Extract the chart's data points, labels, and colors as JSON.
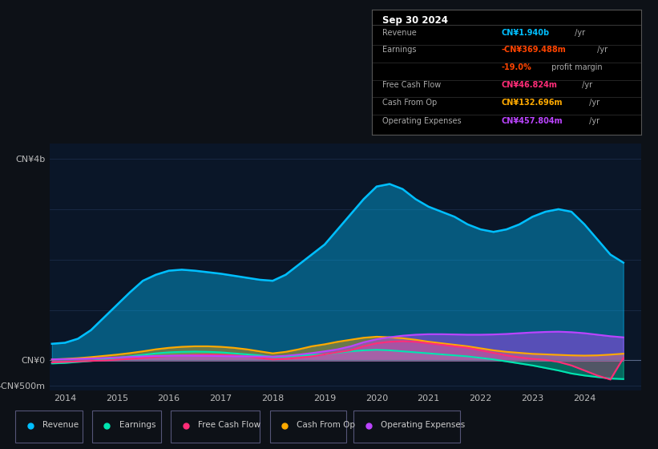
{
  "bg_color": "#0d1117",
  "plot_bg": "#0a1628",
  "title": "Sep 30 2024",
  "ylim_min": -600,
  "ylim_max": 4300,
  "revenue_color": "#00bfff",
  "earnings_color": "#00e5b0",
  "fcf_color": "#ff2d78",
  "cashfromop_color": "#ffaa00",
  "opex_color": "#bb44ff",
  "years": [
    2013.75,
    2014.0,
    2014.25,
    2014.5,
    2014.75,
    2015.0,
    2015.25,
    2015.5,
    2015.75,
    2016.0,
    2016.25,
    2016.5,
    2016.75,
    2017.0,
    2017.25,
    2017.5,
    2017.75,
    2018.0,
    2018.25,
    2018.5,
    2018.75,
    2019.0,
    2019.25,
    2019.5,
    2019.75,
    2020.0,
    2020.25,
    2020.5,
    2020.75,
    2021.0,
    2021.25,
    2021.5,
    2021.75,
    2022.0,
    2022.25,
    2022.5,
    2022.75,
    2023.0,
    2023.25,
    2023.5,
    2023.75,
    2024.0,
    2024.25,
    2024.5,
    2024.75
  ],
  "revenue": [
    330,
    350,
    430,
    600,
    850,
    1100,
    1350,
    1580,
    1700,
    1780,
    1800,
    1780,
    1750,
    1720,
    1680,
    1640,
    1600,
    1580,
    1700,
    1900,
    2100,
    2300,
    2600,
    2900,
    3200,
    3450,
    3500,
    3400,
    3200,
    3050,
    2950,
    2850,
    2700,
    2600,
    2550,
    2600,
    2700,
    2850,
    2950,
    3000,
    2950,
    2700,
    2400,
    2100,
    1940
  ],
  "earnings": [
    -60,
    -50,
    -30,
    -10,
    20,
    50,
    80,
    110,
    140,
    160,
    170,
    175,
    170,
    160,
    140,
    120,
    100,
    70,
    80,
    100,
    110,
    120,
    150,
    180,
    200,
    210,
    200,
    180,
    160,
    140,
    120,
    100,
    80,
    50,
    20,
    -20,
    -60,
    -100,
    -150,
    -200,
    -260,
    -300,
    -330,
    -360,
    -370
  ],
  "free_cash_flow": [
    -40,
    -30,
    -20,
    -10,
    0,
    15,
    30,
    50,
    70,
    90,
    100,
    110,
    115,
    110,
    100,
    80,
    50,
    20,
    30,
    50,
    80,
    120,
    160,
    200,
    280,
    340,
    370,
    380,
    370,
    340,
    310,
    280,
    250,
    200,
    150,
    100,
    60,
    30,
    10,
    -30,
    -100,
    -200,
    -300,
    -380,
    47
  ],
  "cash_from_op": [
    20,
    30,
    45,
    65,
    90,
    115,
    145,
    180,
    220,
    250,
    270,
    280,
    280,
    270,
    250,
    220,
    180,
    140,
    170,
    220,
    280,
    320,
    370,
    410,
    450,
    470,
    460,
    440,
    410,
    370,
    340,
    310,
    280,
    240,
    200,
    170,
    150,
    130,
    120,
    110,
    100,
    95,
    100,
    115,
    133
  ],
  "operating_expenses": [
    20,
    25,
    30,
    38,
    48,
    58,
    70,
    80,
    88,
    92,
    95,
    93,
    90,
    86,
    82,
    80,
    78,
    76,
    90,
    115,
    145,
    180,
    220,
    280,
    360,
    420,
    460,
    490,
    510,
    520,
    520,
    515,
    510,
    510,
    515,
    525,
    540,
    555,
    565,
    570,
    560,
    540,
    510,
    480,
    458
  ],
  "info_title": "Sep 30 2024",
  "info_rows": [
    {
      "label": "Revenue",
      "value": "CN¥1.940b",
      "value_color": "#00bfff",
      "suffix": " /yr"
    },
    {
      "label": "Earnings",
      "value": "-CN¥369.488m",
      "value_color": "#ff4400",
      "suffix": " /yr"
    },
    {
      "label": "",
      "value": "-19.0%",
      "value_color": "#ff4400",
      "suffix": " profit margin",
      "suffix_color": "#aaaaaa"
    },
    {
      "label": "Free Cash Flow",
      "value": "CN¥46.824m",
      "value_color": "#ff2d78",
      "suffix": " /yr"
    },
    {
      "label": "Cash From Op",
      "value": "CN¥132.696m",
      "value_color": "#ffaa00",
      "suffix": " /yr"
    },
    {
      "label": "Operating Expenses",
      "value": "CN¥457.804m",
      "value_color": "#bb44ff",
      "suffix": " /yr"
    }
  ],
  "legend_labels": [
    "Revenue",
    "Earnings",
    "Free Cash Flow",
    "Cash From Op",
    "Operating Expenses"
  ]
}
